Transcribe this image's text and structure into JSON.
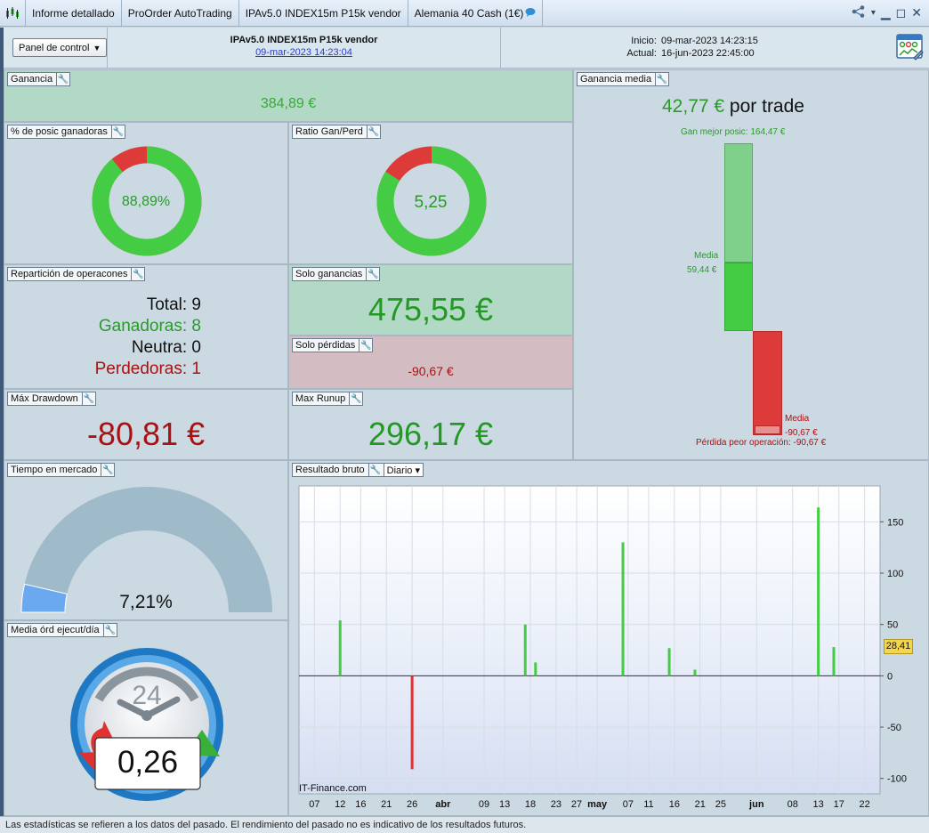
{
  "tabs": [
    {
      "label": "Informe detallado"
    },
    {
      "label": "ProOrder AutoTrading"
    },
    {
      "label": "IPAv5.0 INDEX15m P15k vendor"
    },
    {
      "label": "Alemania 40 Cash (1€)"
    }
  ],
  "header": {
    "panel_button": "Panel de control",
    "title": "IPAv5.0 INDEX15m P15k vendor",
    "date_link": "09-mar-2023 14:23:04",
    "inicio_label": "Inicio:",
    "inicio_value": "09-mar-2023 14:23:15",
    "actual_label": "Actual:",
    "actual_value": "16-jun-2023 22:45:00"
  },
  "panels": {
    "ganancia": {
      "label": "Ganancia",
      "value": "384,89 €"
    },
    "pct_ganadoras": {
      "label": "% de posic ganadoras",
      "value": "88,89%",
      "fraction": 0.8889
    },
    "ratio": {
      "label": "Ratio Gan/Perd",
      "value": "5,25",
      "fraction": 0.84
    },
    "ganancia_media": {
      "label": "Ganancia media",
      "value": "42,77 €",
      "unit": "por trade",
      "best_label": "Gan mejor posic: 164,47 €",
      "media_gain_label": "Media",
      "media_gain_value": "59,44 €",
      "media_loss_label": "Media",
      "media_loss_value": "-90,67 €",
      "worst_label": "Pérdida peor operación: -90,67 €",
      "best": 164.47,
      "avg_gain": 59.44,
      "worst": -90.67,
      "avg_loss": -90.67
    },
    "reparticion": {
      "label": "Repartición de operacones",
      "total_label": "Total:",
      "total": "9",
      "gan_label": "Ganadoras:",
      "gan": "8",
      "neutra_label": "Neutra:",
      "neutra": "0",
      "perd_label": "Perdedoras:",
      "perd": "1"
    },
    "solo_ganancias": {
      "label": "Solo ganancias",
      "value": "475,55 €"
    },
    "solo_perdidas": {
      "label": "Solo pérdidas",
      "value": "-90,67 €"
    },
    "max_drawdown": {
      "label": "Máx Drawdown",
      "value": "-80,81 €"
    },
    "max_runup": {
      "label": "Max Runup",
      "value": "296,17 €"
    },
    "tiempo_mercado": {
      "label": "Tiempo en mercado",
      "value": "7,21%",
      "fraction": 0.0721
    },
    "media_ord": {
      "label": "Media órd ejecut/día",
      "value": "0,26",
      "clock_number": "24"
    },
    "resultado_bruto": {
      "label": "Resultado bruto",
      "dropdown": "Diario",
      "watermark": "IT-Finance.com",
      "current_value": "28,41"
    }
  },
  "footer": "Las estadísticas se refieren a los datos del pasado. El rendimiento del pasado no es indicativo de los resultados futuros.",
  "chart_data": {
    "type": "bar",
    "ylim": [
      -115,
      185
    ],
    "yticks": [
      150,
      100,
      50,
      0,
      -50,
      -100
    ],
    "x_range": [
      "2023-03-04",
      "2023-06-25"
    ],
    "xticks": [
      {
        "date": "2023-03-07",
        "label": "07"
      },
      {
        "date": "2023-03-12",
        "label": "12"
      },
      {
        "date": "2023-03-16",
        "label": "16"
      },
      {
        "date": "2023-03-21",
        "label": "21"
      },
      {
        "date": "2023-03-26",
        "label": "26"
      },
      {
        "date": "2023-04-01",
        "label": "abr",
        "bold": true
      },
      {
        "date": "2023-04-09",
        "label": "09"
      },
      {
        "date": "2023-04-13",
        "label": "13"
      },
      {
        "date": "2023-04-18",
        "label": "18"
      },
      {
        "date": "2023-04-23",
        "label": "23"
      },
      {
        "date": "2023-04-27",
        "label": "27"
      },
      {
        "date": "2023-05-01",
        "label": "may",
        "bold": true
      },
      {
        "date": "2023-05-07",
        "label": "07"
      },
      {
        "date": "2023-05-11",
        "label": "11"
      },
      {
        "date": "2023-05-16",
        "label": "16"
      },
      {
        "date": "2023-05-21",
        "label": "21"
      },
      {
        "date": "2023-05-25",
        "label": "25"
      },
      {
        "date": "2023-06-01",
        "label": "jun",
        "bold": true
      },
      {
        "date": "2023-06-08",
        "label": "08"
      },
      {
        "date": "2023-06-13",
        "label": "13"
      },
      {
        "date": "2023-06-17",
        "label": "17"
      },
      {
        "date": "2023-06-22",
        "label": "22"
      }
    ],
    "points": [
      {
        "date": "2023-03-12",
        "value": 54
      },
      {
        "date": "2023-03-26",
        "value": -91
      },
      {
        "date": "2023-04-17",
        "value": 50
      },
      {
        "date": "2023-04-19",
        "value": 13
      },
      {
        "date": "2023-05-06",
        "value": 130
      },
      {
        "date": "2023-05-15",
        "value": 27
      },
      {
        "date": "2023-05-20",
        "value": 6
      },
      {
        "date": "2023-06-13",
        "value": 164
      },
      {
        "date": "2023-06-16",
        "value": 28
      }
    ],
    "colors": {
      "positive": "#44cc44",
      "negative": "#dd3333"
    }
  }
}
